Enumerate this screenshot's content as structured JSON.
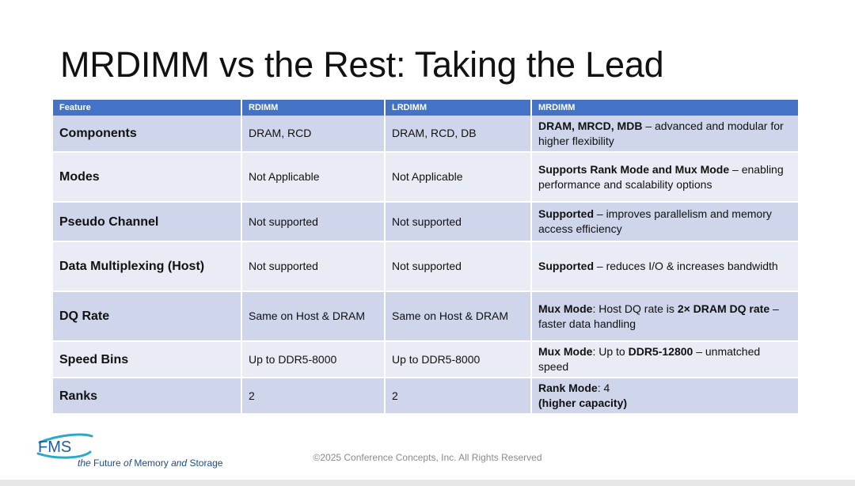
{
  "title": "MRDIMM vs the Rest: Taking the Lead",
  "table": {
    "headers": [
      "Feature",
      "RDIMM",
      "LRDIMM",
      "MRDIMM"
    ],
    "rows": [
      {
        "feature": "Components",
        "rdimm": "DRAM, RCD",
        "lrdimm": "DRAM, RCD, DB",
        "mrdimm": [
          {
            "text": "DRAM, MRCD, MDB",
            "bold": true
          },
          {
            "text": " – advanced and modular for higher flexibility",
            "bold": false
          }
        ]
      },
      {
        "feature": "Modes",
        "rdimm": "Not Applicable",
        "lrdimm": "Not Applicable",
        "mrdimm": [
          {
            "text": "Supports Rank Mode and Mux Mode",
            "bold": true
          },
          {
            "text": " – enabling performance and scalability options",
            "bold": false
          }
        ]
      },
      {
        "feature": "Pseudo Channel",
        "rdimm": "Not supported",
        "lrdimm": "Not supported",
        "mrdimm": [
          {
            "text": "Supported",
            "bold": true
          },
          {
            "text": " – improves parallelism and memory access efficiency",
            "bold": false
          }
        ]
      },
      {
        "feature": "Data Multiplexing (Host)",
        "rdimm": "Not supported",
        "lrdimm": "Not supported",
        "mrdimm": [
          {
            "text": "Supported",
            "bold": true
          },
          {
            "text": " – reduces I/O & increases bandwidth",
            "bold": false
          }
        ]
      },
      {
        "feature": "DQ Rate",
        "rdimm": "Same on Host & DRAM",
        "lrdimm": "Same on Host & DRAM",
        "mrdimm": [
          {
            "text": "Mux Mode",
            "bold": true
          },
          {
            "text": ": Host DQ rate is ",
            "bold": false
          },
          {
            "text": "2× DRAM DQ rate",
            "bold": true
          },
          {
            "text": " – faster data handling",
            "bold": false
          }
        ]
      },
      {
        "feature": "Speed Bins",
        "rdimm": "Up to DDR5-8000",
        "lrdimm": "Up to DDR5-8000",
        "mrdimm": [
          {
            "text": "Mux Mode",
            "bold": true
          },
          {
            "text": ": Up to ",
            "bold": false
          },
          {
            "text": "DDR5-12800",
            "bold": true
          },
          {
            "text": " – unmatched speed",
            "bold": false
          }
        ]
      },
      {
        "feature": "Ranks",
        "rdimm": "2",
        "lrdimm": "2",
        "mrdimm": [
          {
            "text": "Rank Mode",
            "bold": true
          },
          {
            "text": ": 4",
            "bold": false
          },
          {
            "br": true
          },
          {
            "text": "(higher capacity)",
            "bold": true
          }
        ]
      }
    ]
  },
  "logo": {
    "text": "FMS",
    "tagline_the": "the ",
    "tagline_future": "Future",
    "tagline_of": " of ",
    "tagline_memory": "Memory",
    "tagline_and": " and ",
    "tagline_storage": "Storage",
    "color_blue": "#1e5aa8",
    "color_teal": "#2aa8c8"
  },
  "footer": "©2025 Conference Concepts, Inc. All Rights Reserved",
  "colors": {
    "header": "#4472c4",
    "row_dark": "#cfd5ea",
    "row_light": "#e9ebf5"
  }
}
